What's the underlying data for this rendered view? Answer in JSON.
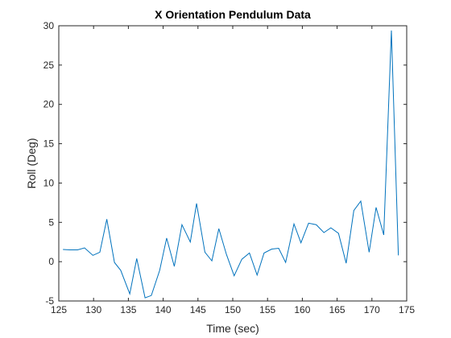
{
  "chart_data": {
    "type": "line",
    "title": "X Orientation Pendulum Data",
    "x_label": "Time (sec)",
    "y_label": "Roll (Deg)",
    "x": [
      125.6,
      126.6,
      127.7,
      128.7,
      129.9,
      130.9,
      131.9,
      133.0,
      133.9,
      135.2,
      136.2,
      137.4,
      138.3,
      139.5,
      140.5,
      141.6,
      142.7,
      143.9,
      144.8,
      146.0,
      147.0,
      148.0,
      149.1,
      150.2,
      151.3,
      152.4,
      153.5,
      154.5,
      155.6,
      156.6,
      157.6,
      158.8,
      159.8,
      160.9,
      162.0,
      163.1,
      164.1,
      165.2,
      166.3,
      167.4,
      168.4,
      169.6,
      170.6,
      171.7,
      172.8,
      173.8
    ],
    "series": [
      {
        "color": "#0072bd",
        "values": [
          1.55,
          1.5,
          1.5,
          1.75,
          0.8,
          1.2,
          5.4,
          -0.1,
          -1.1,
          -4.1,
          0.4,
          -4.6,
          -4.3,
          -1.1,
          3.0,
          -0.6,
          4.7,
          2.5,
          7.4,
          1.2,
          0.1,
          4.2,
          0.9,
          -1.8,
          0.3,
          1.1,
          -1.7,
          1.1,
          1.6,
          1.7,
          -0.1,
          4.8,
          2.4,
          4.9,
          4.7,
          3.7,
          4.3,
          3.6,
          -0.2,
          6.5,
          7.7,
          1.2,
          6.9,
          3.4,
          29.4,
          0.8
        ]
      }
    ],
    "xlim": [
      125,
      175
    ],
    "xticks": [
      125,
      130,
      135,
      140,
      145,
      150,
      155,
      160,
      165,
      170,
      175
    ],
    "ylim": [
      -5,
      30
    ],
    "yticks": [
      -5,
      0,
      5,
      10,
      15,
      20,
      25,
      30
    ],
    "grid": false
  }
}
